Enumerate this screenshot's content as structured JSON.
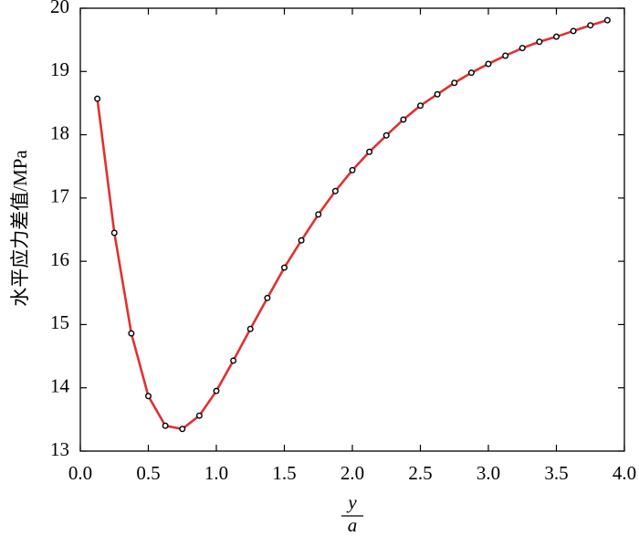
{
  "chart_data": {
    "type": "line",
    "ylabel": "水平应力差值/MPa",
    "xlabel_numerator": "y",
    "xlabel_denominator": "a",
    "xlim": [
      0,
      4.0
    ],
    "xticks": [
      {
        "value": 0,
        "label": "0.0"
      },
      0.5,
      {
        "value": 1,
        "label": "1.0"
      },
      1.5,
      {
        "value": 2,
        "label": "2.0"
      },
      2.5,
      {
        "value": 3,
        "label": "3.0"
      },
      3.5,
      {
        "value": 4,
        "label": "4.0"
      }
    ],
    "ylim": [
      13,
      20
    ],
    "yticks": [
      13,
      14,
      15,
      16,
      17,
      18,
      19,
      20
    ],
    "grid": false,
    "series": [
      {
        "color": "#e03131",
        "x": [
          0.125,
          0.25,
          0.375,
          0.5,
          0.625,
          0.75,
          0.875,
          1.0,
          1.125,
          1.25,
          1.375,
          1.5,
          1.625,
          1.75,
          1.875,
          2.0,
          2.125,
          2.25,
          2.375,
          2.5,
          2.625,
          2.75,
          2.875,
          3.0,
          3.125,
          3.25,
          3.375,
          3.5,
          3.625,
          3.75,
          3.875
        ],
        "values": [
          18.57,
          16.45,
          14.86,
          13.87,
          13.4,
          13.35,
          13.56,
          13.95,
          14.43,
          14.93,
          15.42,
          15.9,
          16.33,
          16.74,
          17.11,
          17.44,
          17.73,
          17.99,
          18.24,
          18.46,
          18.64,
          18.82,
          18.98,
          19.12,
          19.25,
          19.37,
          19.47,
          19.55,
          19.64,
          19.73,
          19.81
        ]
      }
    ]
  }
}
